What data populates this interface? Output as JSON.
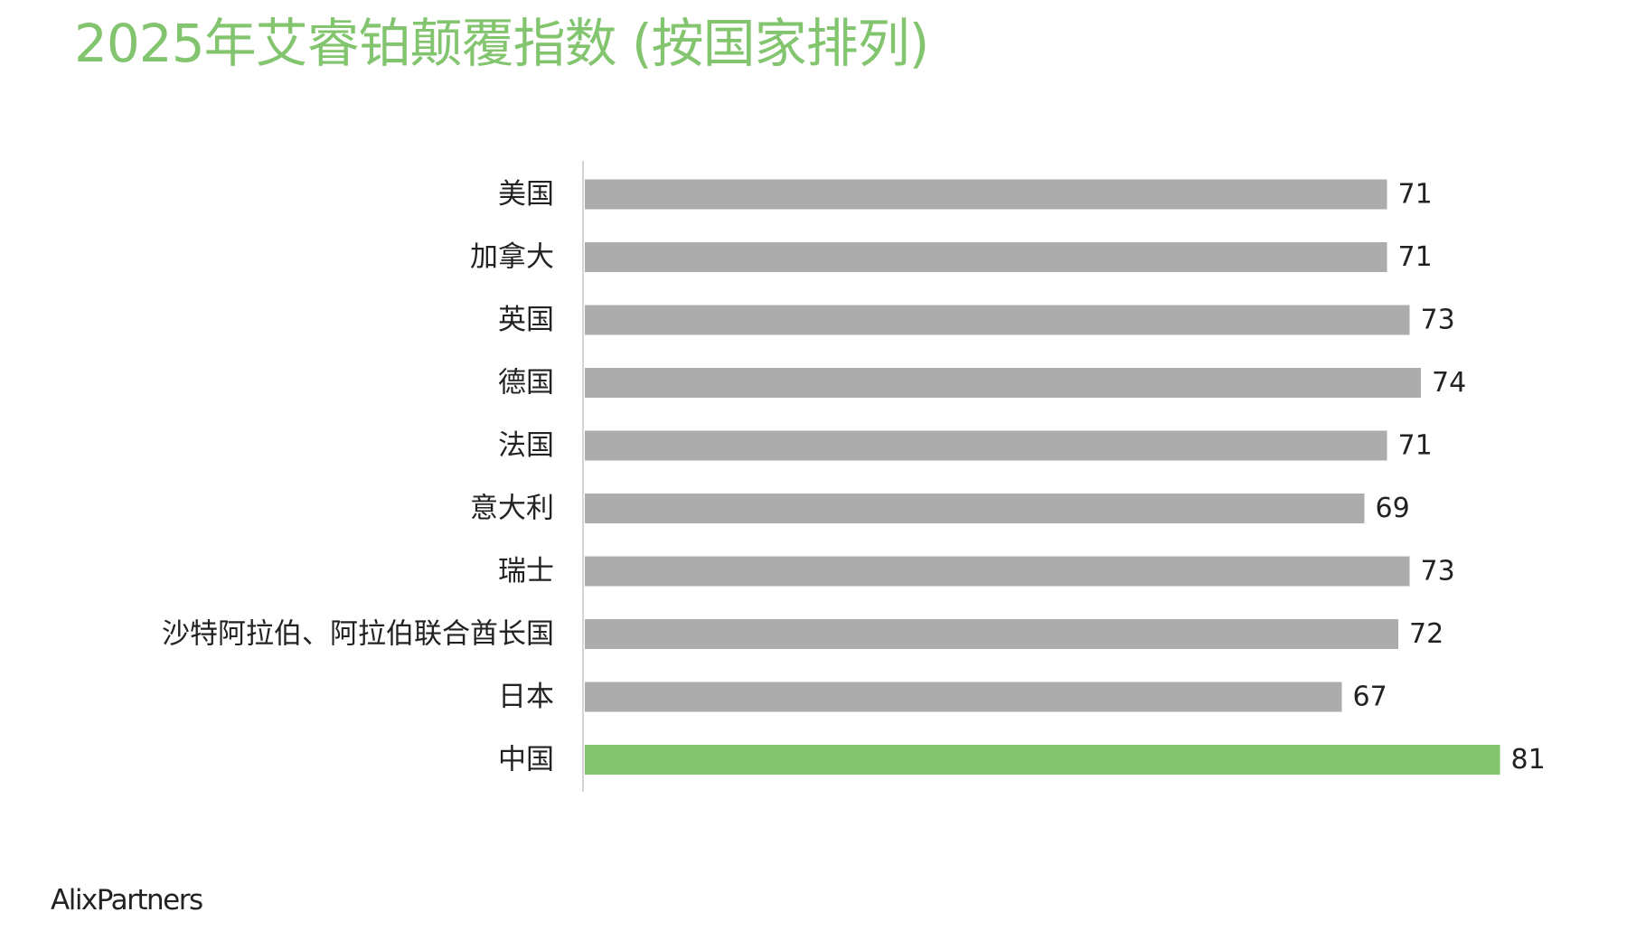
{
  "page": {
    "title": "2025年艾睿铂颠覆指数 (按国家排列)",
    "brand": "AlixPartners"
  },
  "colors": {
    "title": "#82c56e",
    "bar_default": "#acacac",
    "bar_highlight": "#82c56e",
    "axis": "#d4d4d4",
    "text": "#222222"
  },
  "chart_data": {
    "type": "bar",
    "orientation": "horizontal",
    "title": "2025年艾睿铂颠覆指数 (按国家排列)",
    "xlabel": "",
    "ylabel": "",
    "grid": false,
    "legend": "none",
    "xlim": [
      0,
      84
    ],
    "highlight_category": "中国",
    "categories": [
      "美国",
      "加拿大",
      "英国",
      "德国",
      "法国",
      "意大利",
      "瑞士",
      "沙特阿拉伯、阿拉伯联合酋长国",
      "日本",
      "中国"
    ],
    "values": [
      71,
      71,
      73,
      74,
      71,
      69,
      73,
      72,
      67,
      81
    ],
    "data_labels": [
      "71",
      "71",
      "73",
      "74",
      "71",
      "69",
      "73",
      "72",
      "67",
      "81"
    ]
  }
}
